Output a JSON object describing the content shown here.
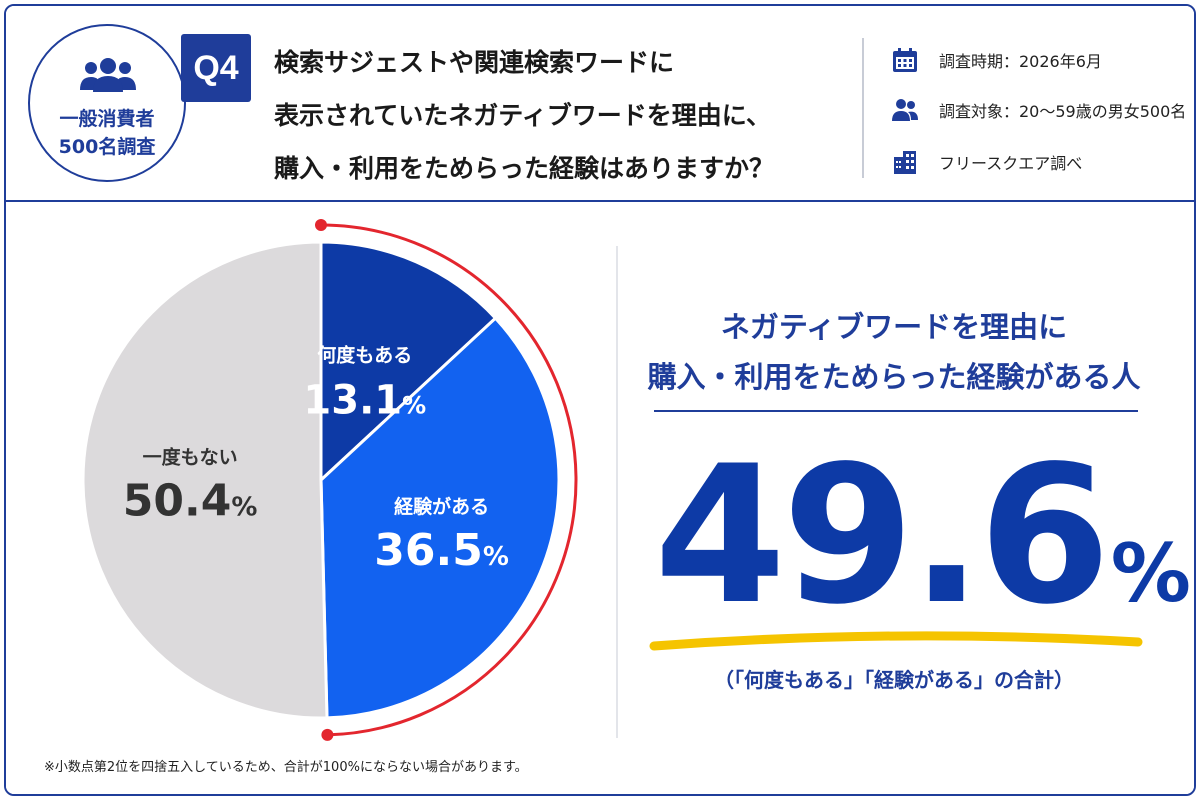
{
  "badge": {
    "line1": "一般消費者",
    "line2": "500名調査",
    "icon": "people-group-icon"
  },
  "question": {
    "tag": "Q4",
    "lines": [
      "検索サジェストや関連検索ワードに",
      "表示されていたネガティブワードを理由に、",
      "購入・利用をためらった経験はありますか？"
    ]
  },
  "meta": [
    {
      "icon": "calendar-icon",
      "text": "調査時期：2026年6月"
    },
    {
      "icon": "people-icon",
      "text": "調査対象：20～59歳の男女500名"
    },
    {
      "icon": "building-icon",
      "text": "フリースクエア調べ"
    }
  ],
  "colors": {
    "brand": "#1f3d9a",
    "dark_blue": "#0d3aa6",
    "bright_blue": "#1262f0",
    "gray": "#dcdadc",
    "red": "#e3262e",
    "yellow": "#f5c400"
  },
  "chart_data": {
    "type": "pie",
    "unit": "%",
    "start": "top, clockwise",
    "slices": [
      {
        "label": "何度もある",
        "value": 13.1,
        "color": "#0d3aa6"
      },
      {
        "label": "経験がある",
        "value": 36.5,
        "color": "#1262f0"
      },
      {
        "label": "一度もない",
        "value": 50.4,
        "color": "#dcdadc"
      }
    ],
    "highlight_arc_slices": [
      "何度もある",
      "経験がある"
    ]
  },
  "summary": {
    "line1": "ネガティブワードを理由に",
    "line2": "購入・利用をためらった経験がある人",
    "value": "49.6",
    "unit": "%",
    "note": "（「何度もある」「経験がある」の合計）"
  },
  "footnote": "※小数点第2位を四捨五入しているため、合計が100%にならない場合があります。"
}
